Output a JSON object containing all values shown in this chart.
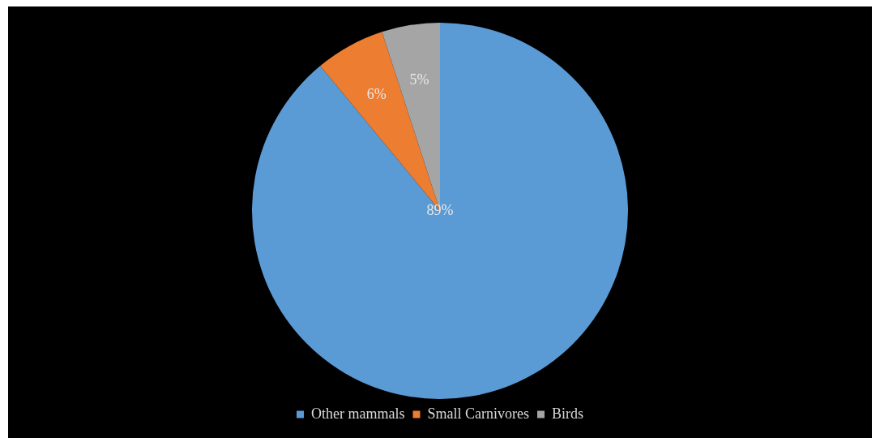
{
  "chart_data": {
    "type": "pie",
    "categories": [
      "Other mammals",
      "Small Carnivores",
      "Birds"
    ],
    "values": [
      89,
      6,
      5
    ],
    "colors": [
      "#5b9bd5",
      "#ed7d31",
      "#a5a5a5"
    ],
    "value_labels": [
      "89%",
      "6%",
      "5%"
    ],
    "legend": "bottom"
  }
}
